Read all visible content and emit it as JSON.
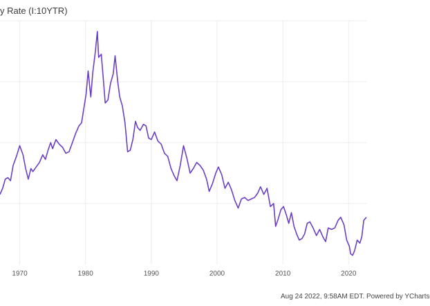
{
  "chart_data": {
    "type": "line",
    "title": "y Rate (I:10YTR)",
    "xlabel": "",
    "ylabel": "",
    "x_ticks": [
      "1970",
      "1980",
      "1990",
      "2000",
      "2010",
      "2020"
    ],
    "xlim": [
      1967.0,
      2022.7
    ],
    "ylim": [
      0,
      16
    ],
    "grid": true,
    "legend": "none",
    "series": [
      {
        "color": "#6a3fc4",
        "x": [
          1967.0,
          1967.4,
          1967.8,
          1968.2,
          1968.6,
          1969.0,
          1969.5,
          1970.0,
          1970.5,
          1970.9,
          1971.3,
          1971.7,
          1972.0,
          1972.5,
          1973.0,
          1973.5,
          1973.9,
          1974.3,
          1974.7,
          1975.0,
          1975.5,
          1976.0,
          1976.5,
          1977.0,
          1977.5,
          1978.0,
          1978.5,
          1979.0,
          1979.4,
          1979.8,
          1980.1,
          1980.4,
          1980.8,
          1981.1,
          1981.5,
          1981.8,
          1982.0,
          1982.4,
          1982.7,
          1983.0,
          1983.4,
          1983.8,
          1984.2,
          1984.5,
          1984.9,
          1985.2,
          1985.6,
          1986.0,
          1986.4,
          1986.8,
          1987.2,
          1987.6,
          1987.9,
          1988.3,
          1988.8,
          1989.2,
          1989.6,
          1990.0,
          1990.5,
          1991.0,
          1991.5,
          1992.0,
          1992.5,
          1993.0,
          1993.5,
          1993.9,
          1994.4,
          1994.9,
          1995.4,
          1995.9,
          1996.4,
          1996.9,
          1997.4,
          1997.9,
          1998.4,
          1998.8,
          1999.3,
          1999.8,
          2000.2,
          2000.7,
          2001.2,
          2001.7,
          2002.2,
          2002.7,
          2003.2,
          2003.7,
          2004.2,
          2004.7,
          2005.2,
          2005.7,
          2006.2,
          2006.6,
          2007.1,
          2007.6,
          2008.1,
          2008.6,
          2008.9,
          2009.3,
          2009.7,
          2010.1,
          2010.5,
          2010.9,
          2011.3,
          2011.7,
          2012.1,
          2012.5,
          2012.9,
          2013.3,
          2013.7,
          2014.1,
          2014.6,
          2015.1,
          2015.6,
          2016.1,
          2016.5,
          2016.9,
          2017.4,
          2017.9,
          2018.4,
          2018.8,
          2019.3,
          2019.7,
          2020.1,
          2020.3,
          2020.6,
          2020.9,
          2021.3,
          2021.7,
          2022.0,
          2022.3,
          2022.7
        ],
        "y": [
          4.6,
          5.0,
          5.6,
          5.7,
          5.5,
          6.5,
          7.1,
          7.8,
          7.2,
          6.3,
          5.6,
          6.3,
          6.1,
          6.4,
          6.7,
          7.2,
          6.9,
          7.5,
          8.0,
          7.6,
          8.2,
          7.9,
          7.7,
          7.3,
          7.4,
          8.0,
          8.6,
          9.1,
          9.3,
          10.4,
          11.2,
          12.7,
          11.0,
          12.6,
          14.0,
          15.3,
          13.6,
          13.8,
          12.2,
          10.6,
          10.8,
          11.9,
          12.5,
          13.7,
          12.0,
          11.0,
          10.4,
          9.3,
          7.4,
          7.5,
          8.2,
          9.4,
          9.0,
          8.8,
          9.2,
          9.1,
          8.3,
          8.2,
          8.7,
          8.1,
          7.9,
          7.3,
          7.1,
          6.3,
          5.8,
          5.5,
          6.5,
          7.8,
          7.0,
          6.0,
          6.3,
          6.7,
          6.5,
          6.2,
          5.6,
          4.8,
          5.3,
          6.0,
          6.4,
          5.9,
          5.0,
          5.4,
          4.9,
          4.2,
          3.7,
          4.3,
          4.4,
          4.2,
          4.3,
          4.4,
          4.7,
          5.1,
          4.6,
          5.0,
          3.8,
          4.0,
          2.5,
          3.0,
          3.6,
          3.8,
          3.3,
          2.7,
          3.4,
          2.5,
          2.0,
          1.6,
          1.7,
          2.0,
          2.7,
          2.8,
          2.4,
          1.9,
          2.3,
          1.8,
          1.5,
          2.4,
          2.3,
          2.4,
          2.9,
          3.1,
          2.6,
          1.6,
          1.2,
          0.7,
          0.6,
          0.9,
          1.6,
          1.4,
          1.8,
          2.9,
          3.1
        ]
      }
    ]
  },
  "footer": "Aug 24 2022, 9:58AM EDT. Powered by YCharts"
}
